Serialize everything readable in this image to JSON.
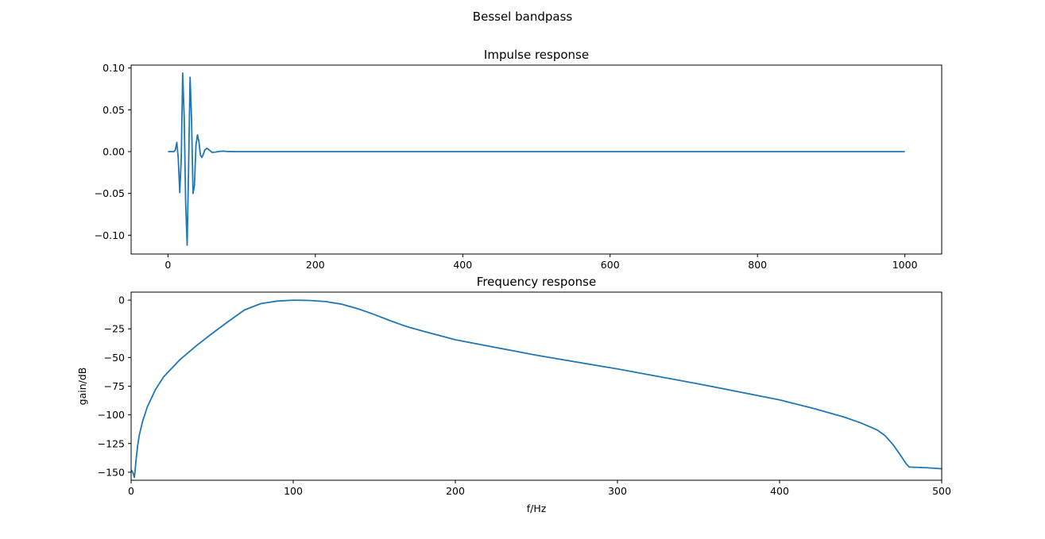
{
  "figure": {
    "suptitle": "Bessel bandpass",
    "line_color": "#1f77b4"
  },
  "chart_data": [
    {
      "type": "line",
      "title": "Impulse response",
      "xlabel": "",
      "ylabel": "",
      "xlim": [
        -50,
        1050
      ],
      "ylim": [
        -0.1225,
        0.1035
      ],
      "xticks": [
        0,
        200,
        400,
        600,
        800,
        1000
      ],
      "xtick_labels": [
        "0",
        "200",
        "400",
        "600",
        "800",
        "1000"
      ],
      "yticks": [
        -0.1,
        -0.05,
        0.0,
        0.05,
        0.1
      ],
      "ytick_labels": [
        "−0.10",
        "−0.05",
        "0.00",
        "0.05",
        "0.10"
      ],
      "grid": false,
      "series": [
        {
          "x": [
            0,
            8,
            10,
            12,
            14,
            16,
            18,
            20,
            22,
            24,
            26,
            28,
            30,
            32,
            34,
            36,
            38,
            40,
            42,
            44,
            46,
            48,
            50,
            53,
            56,
            60,
            65,
            70,
            75,
            80,
            90,
            100,
            200,
            400,
            600,
            800,
            1000
          ],
          "y": [
            0,
            0,
            0.002,
            0.011,
            -0.008,
            -0.049,
            -0.008,
            0.094,
            0.04,
            -0.06,
            -0.112,
            -0.02,
            0.089,
            0.04,
            -0.05,
            -0.04,
            0.008,
            0.02,
            0.012,
            -0.004,
            -0.007,
            -0.003,
            0.002,
            0.004,
            0.002,
            -0.001,
            -0.0005,
            0.0003,
            0.0006,
            0.0002,
            0.0,
            0.0,
            0.0,
            0.0,
            0.0,
            0.0,
            0.0
          ]
        }
      ]
    },
    {
      "type": "line",
      "title": "Frequency response",
      "xlabel": "f/Hz",
      "ylabel": "gain/dB",
      "xlim": [
        0,
        500
      ],
      "ylim": [
        -157,
        7
      ],
      "xticks": [
        0,
        100,
        200,
        300,
        400,
        500
      ],
      "xtick_labels": [
        "0",
        "100",
        "200",
        "300",
        "400",
        "500"
      ],
      "yticks": [
        -150,
        -125,
        -100,
        -75,
        -50,
        -25,
        0
      ],
      "ytick_labels": [
        "−150",
        "−125",
        "−100",
        "−75",
        "−50",
        "−25",
        "0"
      ],
      "grid": false,
      "series": [
        {
          "x": [
            0,
            1,
            1.5,
            2,
            2.5,
            3,
            4,
            5,
            7,
            10,
            15,
            20,
            30,
            40,
            50,
            60,
            70,
            80,
            90,
            100,
            110,
            120,
            130,
            140,
            150,
            160,
            170,
            180,
            200,
            250,
            300,
            350,
            400,
            420,
            440,
            450,
            460,
            465,
            470,
            475,
            478,
            480,
            490,
            500
          ],
          "y": [
            -148,
            -150,
            -152,
            -154.5,
            -148,
            -140,
            -127,
            -118,
            -106,
            -93,
            -78,
            -67,
            -52,
            -40,
            -29,
            -18.5,
            -8.5,
            -3,
            -0.8,
            0,
            -0.3,
            -1.2,
            -3.5,
            -7.5,
            -12.5,
            -18,
            -23,
            -27,
            -34.5,
            -48,
            -60,
            -73,
            -87,
            -94,
            -102,
            -107,
            -113,
            -118,
            -126,
            -136,
            -142.5,
            -145.5,
            -146,
            -147
          ]
        }
      ]
    }
  ]
}
